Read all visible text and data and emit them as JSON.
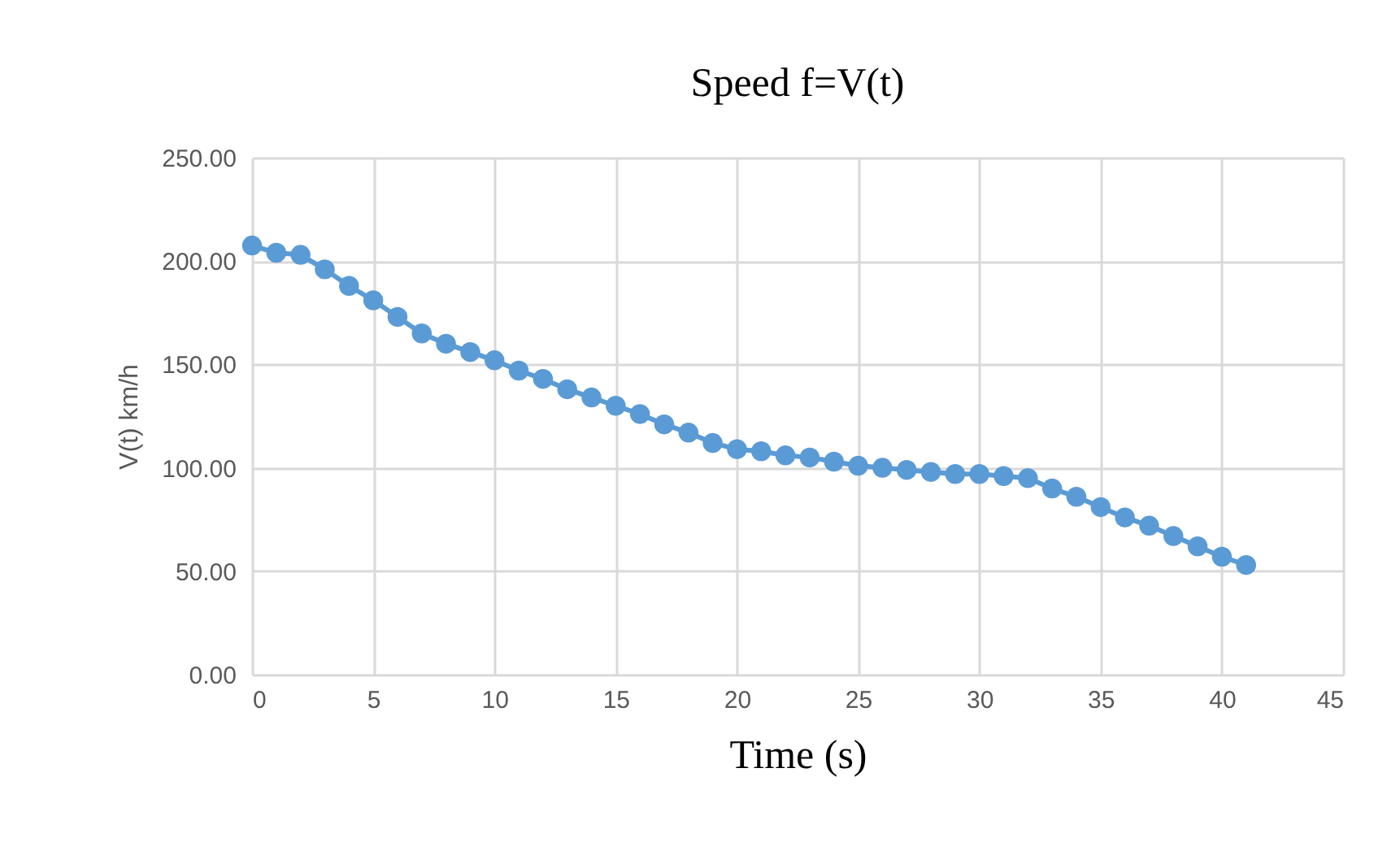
{
  "chart_data": {
    "type": "line",
    "title": "Speed f=V(t)",
    "xlabel": "Time (s)",
    "ylabel": "V(t) km/h",
    "x": [
      0,
      1,
      2,
      3,
      4,
      5,
      6,
      7,
      8,
      9,
      10,
      11,
      12,
      13,
      14,
      15,
      16,
      17,
      18,
      19,
      20,
      21,
      22,
      23,
      24,
      25,
      26,
      27,
      28,
      29,
      30,
      31,
      32,
      33,
      34,
      35,
      36,
      37,
      38,
      39,
      40,
      41
    ],
    "series": [
      {
        "color": "#5b9bd5",
        "values": [
          207.5,
          204,
          203,
          196,
          188,
          181,
          173,
          165,
          160,
          156,
          152,
          147,
          143,
          138,
          134,
          130,
          126,
          121,
          117,
          112,
          109,
          108,
          106,
          105,
          103,
          101,
          100,
          99,
          98,
          97,
          97,
          96,
          95,
          90,
          86,
          81,
          76,
          72,
          67,
          62,
          57,
          53
        ]
      }
    ],
    "xlim": [
      0,
      45
    ],
    "xticks": [
      0,
      5,
      10,
      15,
      20,
      25,
      30,
      35,
      40,
      45
    ],
    "ylim": [
      0,
      250
    ],
    "yticks": [
      {
        "value": 0,
        "label": "0.00"
      },
      {
        "value": 50,
        "label": "50.00"
      },
      {
        "value": 100,
        "label": "100.00"
      },
      {
        "value": 150,
        "label": "150.00"
      },
      {
        "value": 200,
        "label": "200.00"
      },
      {
        "value": 250,
        "label": "250.00"
      }
    ],
    "grid": true,
    "marker": "circle",
    "line_style": "solid"
  }
}
